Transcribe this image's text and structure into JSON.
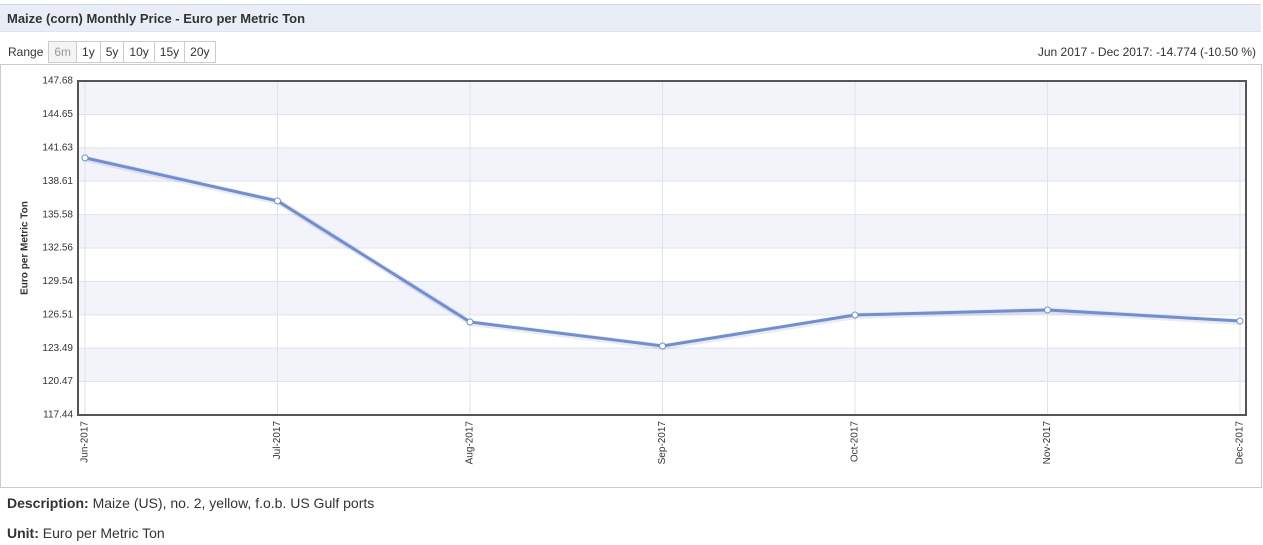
{
  "header": {
    "title": "Maize (corn) Monthly Price - Euro per Metric Ton"
  },
  "range": {
    "label": "Range",
    "buttons": [
      "6m",
      "1y",
      "5y",
      "10y",
      "15y",
      "20y"
    ],
    "summary": "Jun 2017 - Dec 2017: -14.774 (-10.50 %)"
  },
  "chart_data": {
    "type": "line",
    "y_label": "Euro per Metric Ton",
    "categories": [
      "Jun-2017",
      "Jul-2017",
      "Aug-2017",
      "Sep-2017",
      "Oct-2017",
      "Nov-2017",
      "Dec-2017"
    ],
    "values": [
      140.72,
      136.82,
      125.86,
      123.69,
      126.49,
      126.95,
      125.95
    ],
    "color": "#6d8fd9",
    "ylim": [
      117.44,
      147.68
    ],
    "yticks": [
      117.44,
      120.47,
      123.49,
      126.51,
      129.54,
      132.56,
      135.58,
      138.61,
      141.63,
      144.65,
      147.68
    ],
    "grid": true
  },
  "description": {
    "label": "Description:",
    "text": "Maize (US), no. 2, yellow, f.o.b. US Gulf ports"
  },
  "unit": {
    "label": "Unit:",
    "text": "Euro per Metric Ton"
  }
}
